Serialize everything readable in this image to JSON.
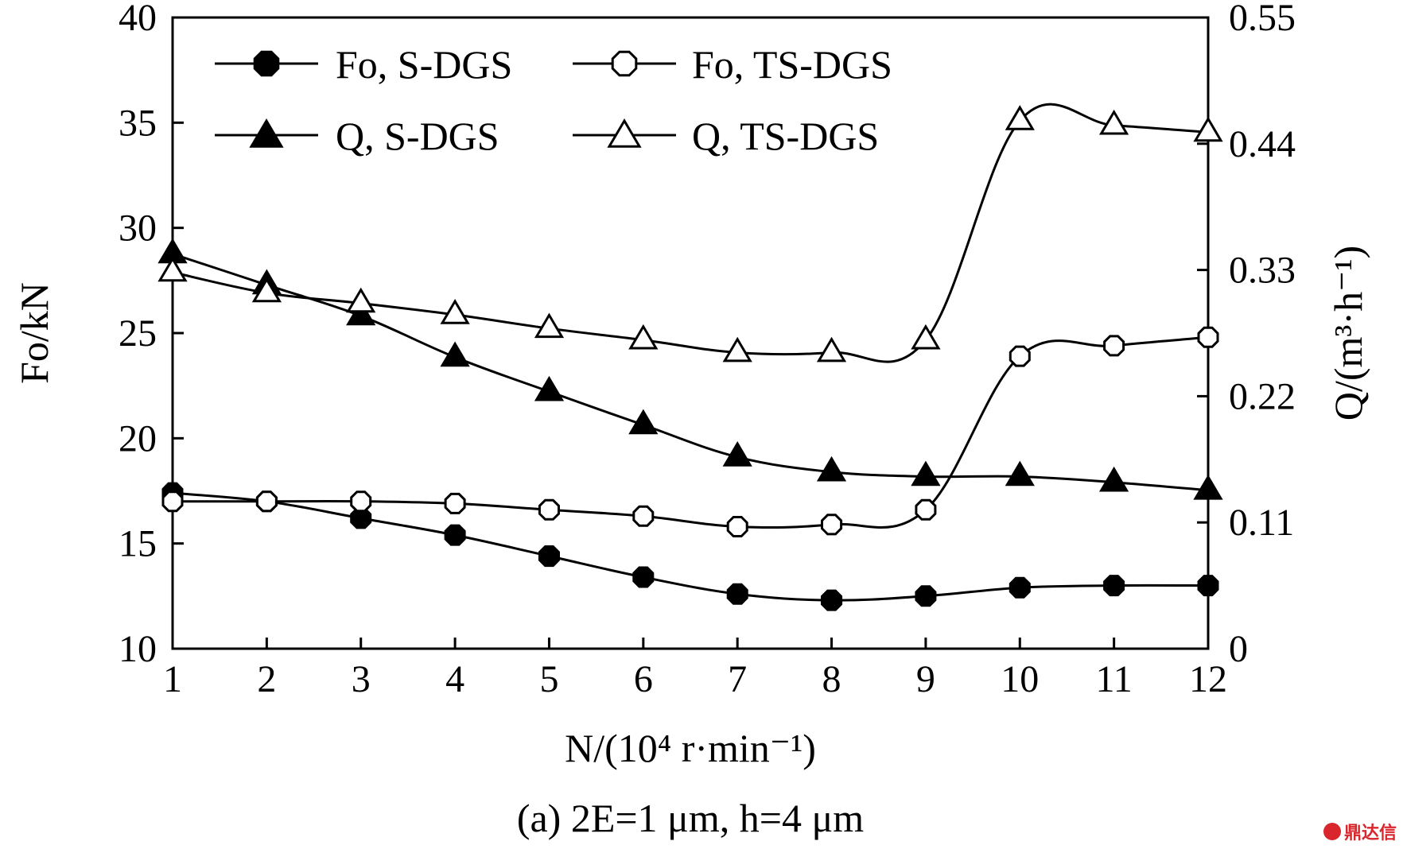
{
  "chart_data": {
    "type": "line",
    "x": [
      1,
      2,
      3,
      4,
      5,
      6,
      7,
      8,
      9,
      10,
      11,
      12
    ],
    "xlim": [
      1,
      12
    ],
    "xticks": [
      "1",
      "2",
      "3",
      "4",
      "5",
      "6",
      "7",
      "8",
      "9",
      "10",
      "11",
      "12"
    ],
    "ylim_left": [
      10,
      40
    ],
    "yticks_left": [
      "10",
      "15",
      "20",
      "25",
      "30",
      "35",
      "40"
    ],
    "ylim_right": [
      0,
      0.55
    ],
    "yticks_right": [
      "0",
      "0.11",
      "0.22",
      "0.33",
      "0.44",
      "0.55"
    ],
    "xlabel": "N/(10⁴ r·min⁻¹)",
    "ylabel_left": "Fo/kN",
    "ylabel_right": "Q/(m³·h⁻¹)",
    "caption": "(a) 2E=1 μm, h=4 μm",
    "grid": false,
    "legend_position": "top-left",
    "series": [
      {
        "name": "Fo, S-DGS",
        "axis": "left",
        "marker": "filled-octagon",
        "values": [
          17.4,
          17.0,
          16.2,
          15.4,
          14.4,
          13.4,
          12.6,
          12.3,
          12.5,
          12.9,
          13.0,
          13.0
        ]
      },
      {
        "name": "Fo, TS-DGS",
        "axis": "left",
        "marker": "open-octagon",
        "values": [
          17.0,
          17.0,
          17.0,
          16.9,
          16.6,
          16.3,
          15.8,
          15.9,
          16.6,
          23.9,
          24.4,
          24.8
        ]
      },
      {
        "name": "Q, S-DGS",
        "axis": "right",
        "marker": "filled-triangle",
        "values": [
          0.344,
          0.317,
          0.29,
          0.254,
          0.224,
          0.195,
          0.167,
          0.154,
          0.15,
          0.15,
          0.145,
          0.138
        ]
      },
      {
        "name": "Q, TS-DGS",
        "axis": "right",
        "marker": "open-triangle",
        "values": [
          0.328,
          0.31,
          0.301,
          0.291,
          0.279,
          0.269,
          0.258,
          0.258,
          0.269,
          0.46,
          0.456,
          0.45
        ]
      }
    ]
  },
  "watermark": "鼎达信"
}
